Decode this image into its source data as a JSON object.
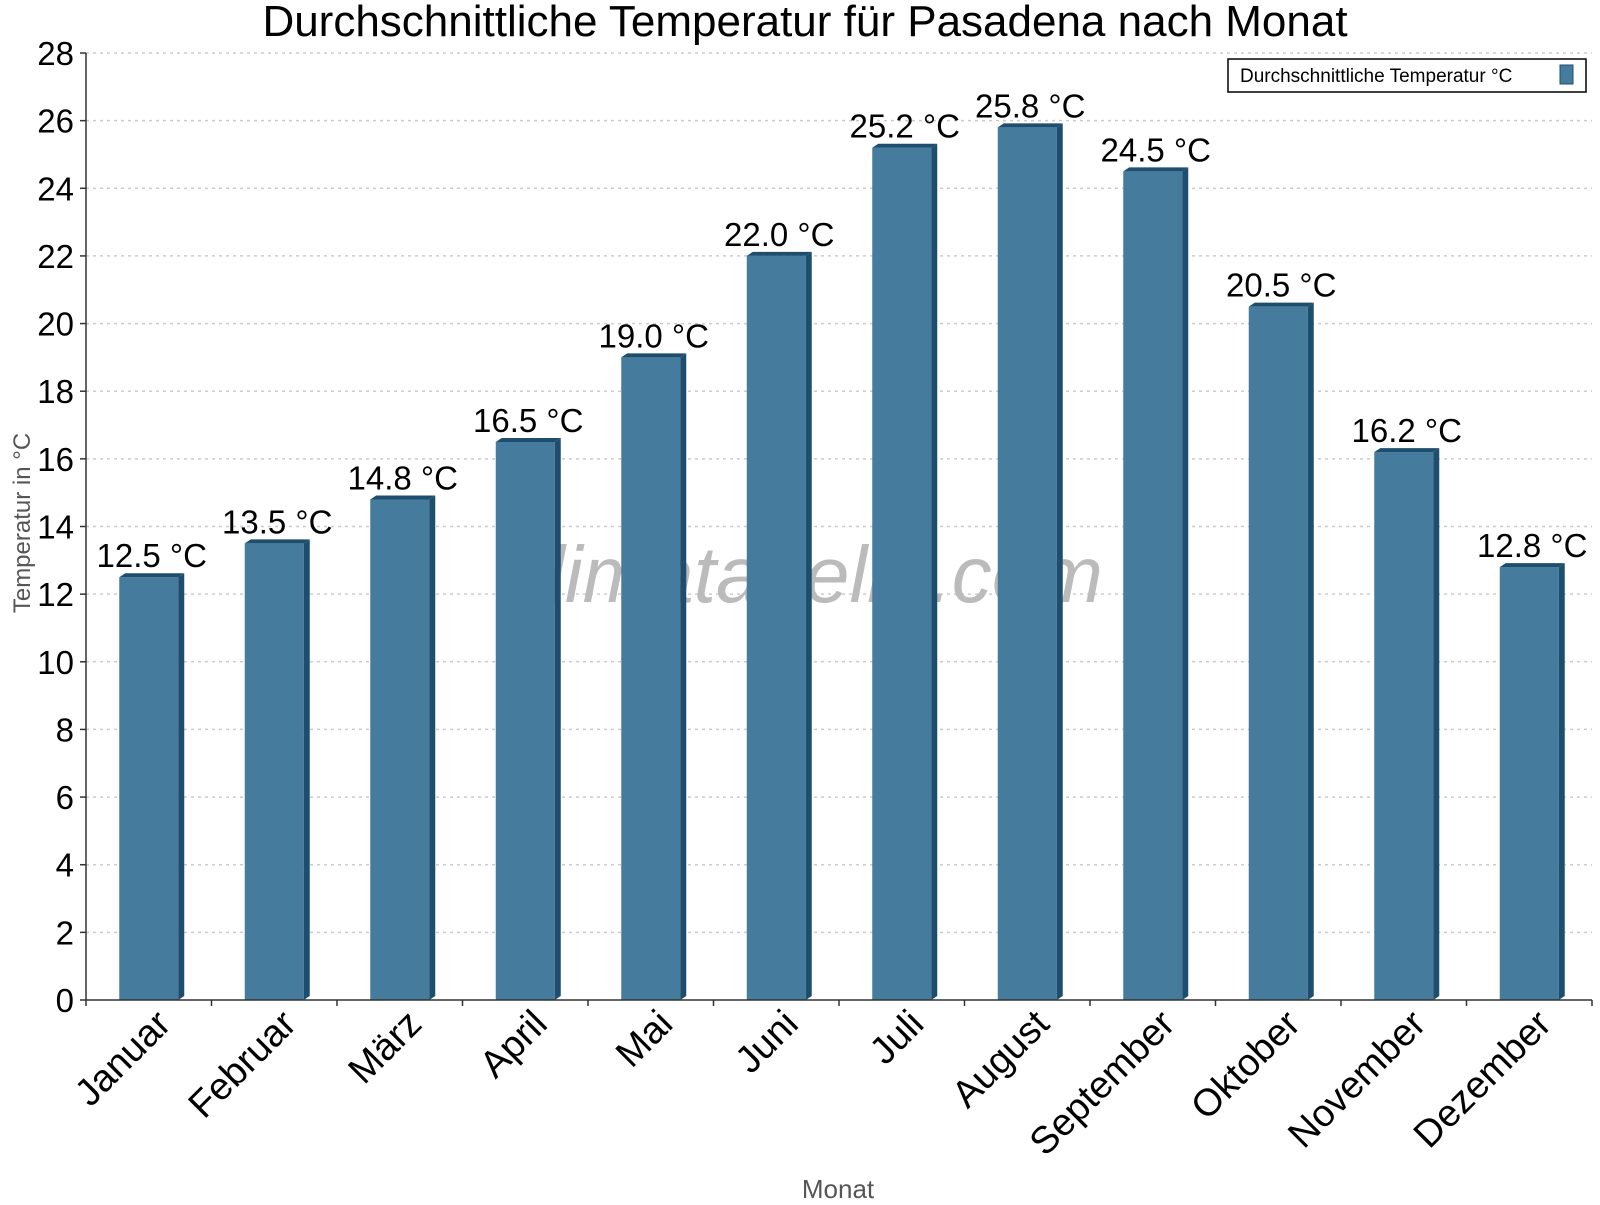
{
  "chart_data": {
    "type": "bar",
    "title": "Durchschnittliche Temperatur für Pasadena nach Monat",
    "xlabel": "Monat",
    "ylabel": "Temperatur in °C",
    "categories": [
      "Januar",
      "Februar",
      "März",
      "April",
      "Mai",
      "Juni",
      "Juli",
      "August",
      "September",
      "Oktober",
      "November",
      "Dezember"
    ],
    "series": [
      {
        "name": "Durchschnittliche Temperatur °C",
        "values": [
          12.5,
          13.5,
          14.8,
          16.5,
          19.0,
          22.0,
          25.2,
          25.8,
          24.5,
          20.5,
          16.2,
          12.8
        ],
        "data_labels": [
          "12.5 °C",
          "13.5 °C",
          "14.8 °C",
          "16.5 °C",
          "19.0 °C",
          "22.0 °C",
          "25.2 °C",
          "25.8 °C",
          "24.5 °C",
          "20.5 °C",
          "16.2 °C",
          "12.8 °C"
        ]
      }
    ],
    "ylim": [
      0,
      28
    ],
    "yticks": [
      0,
      2,
      4,
      6,
      8,
      10,
      12,
      14,
      16,
      18,
      20,
      22,
      24,
      26,
      28
    ],
    "grid": true,
    "legend_position": "top-right",
    "watermark": "klimatabelle.com",
    "colors": {
      "bar": "#457b9d",
      "bar_shade": "#1d4e6e",
      "grid": "#cccccc",
      "axis": "#333333",
      "watermark": "#bbbbbb"
    }
  }
}
